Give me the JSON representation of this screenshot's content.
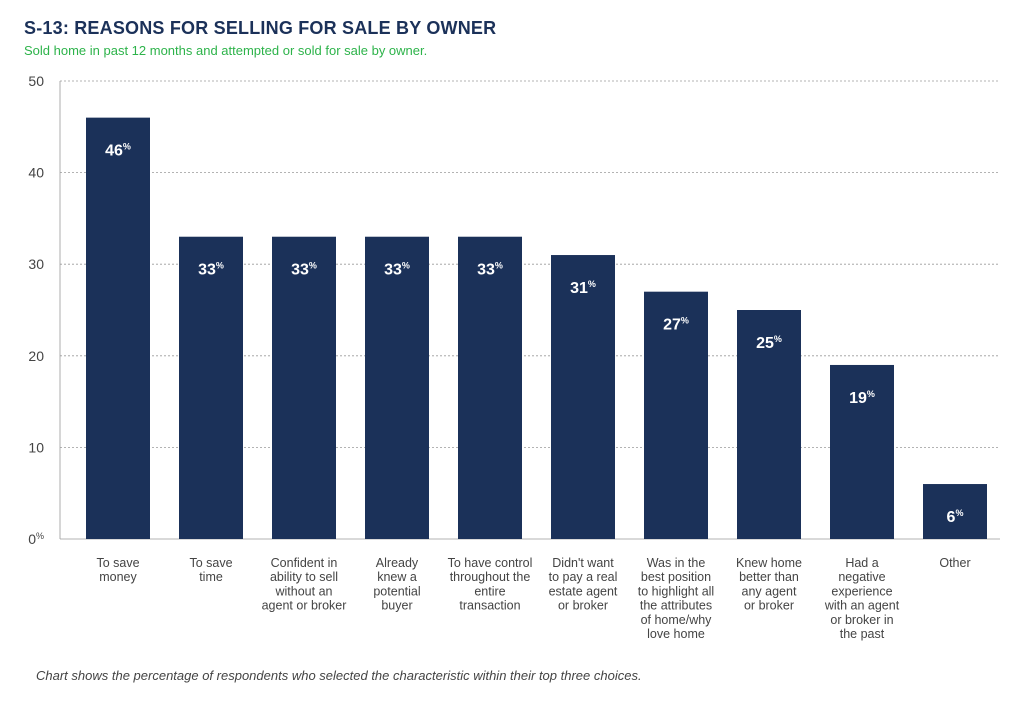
{
  "header": {
    "title": "S-13: REASONS FOR SELLING FOR SALE BY OWNER",
    "subtitle": "Sold home in past 12 months and attempted or sold for sale by owner."
  },
  "footer": {
    "note": "Chart shows the percentage of respondents who selected the characteristic within their top three choices."
  },
  "colors": {
    "bar": "#1b3159",
    "grid": "#9a9a9a",
    "subtitle": "#2db34a",
    "title": "#1b3159"
  },
  "chart_data": {
    "type": "bar",
    "title": "S-13: REASONS FOR SELLING FOR SALE BY OWNER",
    "subtitle": "Sold home in past 12 months and attempted or sold for sale by owner.",
    "xlabel": "",
    "ylabel": "",
    "ylim": [
      0,
      50
    ],
    "yticks": [
      0,
      10,
      20,
      30,
      40,
      50
    ],
    "ytick_labels": [
      "0%",
      "10",
      "20",
      "30",
      "40",
      "50"
    ],
    "grid": true,
    "value_suffix": "%",
    "categories": [
      [
        "To save",
        "money"
      ],
      [
        "To save",
        "time"
      ],
      [
        "Confident in",
        "ability to sell",
        "without an",
        "agent or broker"
      ],
      [
        "Already",
        "knew a",
        "potential",
        "buyer"
      ],
      [
        "To have control",
        "throughout the",
        "entire",
        "transaction"
      ],
      [
        "Didn't want",
        "to pay a real",
        "estate agent",
        "or broker"
      ],
      [
        "Was in the",
        "best position",
        "to highlight all",
        "the attributes",
        "of home/why",
        "love home"
      ],
      [
        "Knew home",
        "better than",
        "any agent",
        "or broker"
      ],
      [
        "Had a",
        "negative",
        "experience",
        "with an agent",
        "or broker in",
        "the past"
      ],
      [
        "Other"
      ]
    ],
    "values": [
      46,
      33,
      33,
      33,
      33,
      31,
      27,
      25,
      19,
      6
    ]
  }
}
